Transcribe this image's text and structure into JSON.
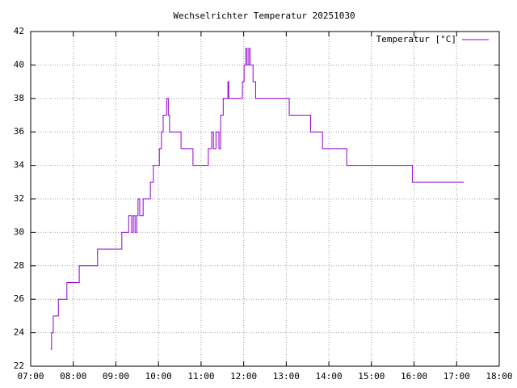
{
  "chart_data": {
    "type": "line",
    "title": "Wechselrichter Temperatur 20251030",
    "xlim": [
      7,
      18
    ],
    "xticks": [
      {
        "value": 7,
        "label": "07:00"
      },
      {
        "value": 8,
        "label": "08:00"
      },
      {
        "value": 9,
        "label": "09:00"
      },
      {
        "value": 10,
        "label": "10:00"
      },
      {
        "value": 11,
        "label": "11:00"
      },
      {
        "value": 12,
        "label": "12:00"
      },
      {
        "value": 13,
        "label": "13:00"
      },
      {
        "value": 14,
        "label": "14:00"
      },
      {
        "value": 15,
        "label": "15:00"
      },
      {
        "value": 16,
        "label": "16:00"
      },
      {
        "value": 17,
        "label": "17:00"
      },
      {
        "value": 18,
        "label": "18:00"
      }
    ],
    "ylim": [
      22,
      42
    ],
    "yticks": [
      22,
      24,
      26,
      28,
      30,
      32,
      34,
      36,
      38,
      40,
      42
    ],
    "grid": true,
    "legend": "top-right",
    "series": [
      {
        "name": "Temperatur [°C]",
        "color": "#9400d3",
        "x": [
          7.47,
          7.49,
          7.49,
          7.53,
          7.53,
          7.65,
          7.65,
          7.85,
          7.85,
          8.14,
          8.14,
          8.57,
          8.57,
          9.14,
          9.14,
          9.3,
          9.3,
          9.37,
          9.37,
          9.41,
          9.41,
          9.45,
          9.45,
          9.49,
          9.49,
          9.52,
          9.52,
          9.56,
          9.56,
          9.64,
          9.64,
          9.81,
          9.81,
          9.88,
          9.88,
          10.02,
          10.02,
          10.07,
          10.07,
          10.11,
          10.11,
          10.19,
          10.19,
          10.23,
          10.23,
          10.26,
          10.26,
          10.53,
          10.53,
          10.81,
          10.81,
          11.17,
          11.17,
          11.25,
          11.25,
          11.29,
          11.29,
          11.35,
          11.35,
          11.42,
          11.42,
          11.46,
          11.46,
          11.52,
          11.52,
          11.63,
          11.63,
          11.65,
          11.65,
          11.97,
          11.97,
          12.01,
          12.01,
          12.05,
          12.05,
          12.08,
          12.08,
          12.12,
          12.12,
          12.15,
          12.15,
          12.22,
          12.22,
          12.28,
          12.28,
          13.07,
          13.07,
          13.57,
          13.57,
          13.85,
          13.85,
          14.42,
          14.42,
          15.96,
          15.96,
          17.17
        ],
        "values": [
          23,
          23,
          24,
          24,
          25,
          25,
          26,
          26,
          27,
          27,
          28,
          28,
          29,
          29,
          30,
          30,
          31,
          31,
          30,
          30,
          31,
          31,
          30,
          30,
          31,
          31,
          32,
          32,
          31,
          31,
          32,
          32,
          33,
          33,
          34,
          34,
          35,
          35,
          36,
          36,
          37,
          37,
          38,
          38,
          37,
          37,
          36,
          36,
          35,
          35,
          34,
          34,
          35,
          35,
          36,
          36,
          35,
          35,
          36,
          36,
          35,
          35,
          37,
          37,
          38,
          38,
          39,
          39,
          38,
          38,
          39,
          39,
          40,
          40,
          41,
          41,
          40,
          40,
          41,
          41,
          40,
          40,
          39,
          39,
          38,
          38,
          37,
          37,
          36,
          36,
          35,
          35,
          34,
          34,
          33,
          33
        ]
      }
    ]
  }
}
